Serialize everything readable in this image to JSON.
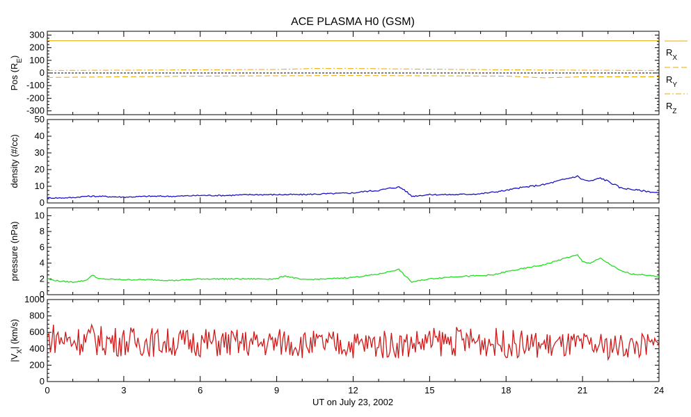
{
  "chart_data": {
    "title": "ACE PLASMA H0 (GSM)",
    "xlabel": "UT on July 23, 2002",
    "type": "line",
    "x_ticks": [
      "0",
      "3",
      "6",
      "9",
      "12",
      "15",
      "18",
      "21",
      "24"
    ],
    "xlim": [
      0,
      24
    ],
    "panels": [
      {
        "id": "pos",
        "ylabel_main": "Pos (R",
        "ylabel_sub": "E",
        "ylabel_tail": ")",
        "ylim": [
          -330,
          330
        ],
        "y_ticks": [
          "300",
          "200",
          "100",
          "0",
          "-100",
          "-200",
          "-300"
        ],
        "y_tick_values": [
          300,
          200,
          100,
          0,
          -100,
          -200,
          -300
        ],
        "legend": [
          {
            "main": "R",
            "sub": "X",
            "color": "#e8a800",
            "dash": "solid"
          },
          {
            "main": "R",
            "sub": "Y",
            "color": "#e8a800",
            "dash": "dashed"
          },
          {
            "main": "R",
            "sub": "Z",
            "color": "#e8a800",
            "dash": "dashdot"
          }
        ],
        "series": [
          {
            "style": "solid",
            "color": "#e8a800",
            "x": [
              0,
              24
            ],
            "y": [
              255,
              255
            ]
          },
          {
            "style": "dashed",
            "color": "#e8a800",
            "x": [
              0,
              3,
              6,
              9,
              12,
              15,
              18,
              19.5,
              21,
              24
            ],
            "y": [
              -35,
              -30,
              -25,
              -22,
              -20,
              -22,
              -25,
              -38,
              -30,
              -30
            ]
          },
          {
            "style": "dashdot",
            "color": "#e8a800",
            "x": [
              0,
              3,
              6,
              9,
              10.5,
              12,
              15,
              18,
              21,
              24
            ],
            "y": [
              20,
              22,
              25,
              28,
              35,
              35,
              30,
              25,
              22,
              20
            ]
          },
          {
            "style": "zero",
            "color": "#000000",
            "x": [
              0,
              24
            ],
            "y": [
              0,
              0
            ]
          }
        ]
      },
      {
        "id": "density",
        "ylabel_main": "density (#/cc)",
        "ylim": [
          0,
          50
        ],
        "y_ticks": [
          "50",
          "40",
          "30",
          "20",
          "10",
          "0"
        ],
        "y_tick_values": [
          50,
          40,
          30,
          20,
          10,
          0
        ],
        "series": [
          {
            "color": "#1a10c8",
            "x": [
              0,
              0.5,
              1,
              1.5,
              2,
              3,
              4,
              5,
              6,
              7,
              8,
              9,
              10,
              11,
              12,
              12.5,
              13,
              13.5,
              13.8,
              14,
              14.3,
              15,
              16,
              17,
              17.5,
              18,
              18.5,
              19,
              19.5,
              20,
              20.5,
              20.8,
              21,
              21.3,
              21.7,
              22,
              22.5,
              23,
              23.5,
              24
            ],
            "y": [
              3,
              3,
              3.2,
              4,
              4,
              3.5,
              4,
              4,
              4.5,
              4.5,
              5,
              5,
              5,
              5.5,
              6,
              7,
              7.5,
              9,
              9.5,
              8,
              4,
              5,
              5,
              5.5,
              6.5,
              7.5,
              9,
              10,
              11,
              13,
              15,
              16,
              14,
              13,
              15,
              13,
              9,
              8,
              7,
              6
            ]
          }
        ]
      },
      {
        "id": "pressure",
        "ylabel_main": "pressure (nPa)",
        "ylim": [
          0,
          11
        ],
        "y_ticks": [
          "10",
          "8",
          "6",
          "4",
          "2",
          "0"
        ],
        "y_tick_values": [
          10,
          8,
          6,
          4,
          2,
          0
        ],
        "series": [
          {
            "color": "#22dd22",
            "x": [
              0,
              0.5,
              1,
              1.5,
              1.8,
              2,
              3,
              4,
              5,
              6,
              7,
              8,
              9,
              9.3,
              10,
              11,
              12,
              12.5,
              13,
              13.5,
              13.8,
              14,
              14.3,
              15,
              16,
              17,
              17.5,
              18,
              18.5,
              19,
              19.5,
              20,
              20.5,
              20.8,
              21,
              21.3,
              21.7,
              22,
              22.5,
              23,
              23.5,
              24
            ],
            "y": [
              2,
              1.7,
              1.6,
              1.8,
              2.5,
              2,
              1.9,
              1.9,
              1.8,
              2,
              2,
              2,
              2,
              2.4,
              1.9,
              2,
              2.2,
              2.4,
              2.6,
              3,
              3.2,
              2.5,
              1.6,
              2,
              2.3,
              2.4,
              2.5,
              2.9,
              3.2,
              3.5,
              3.8,
              4.3,
              4.8,
              5,
              4.2,
              4,
              4.6,
              4,
              3,
              2.6,
              2.5,
              2.2
            ]
          }
        ]
      },
      {
        "id": "vx",
        "ylabel_main": "|V",
        "ylabel_sub": "X",
        "ylabel_tail": "| (km/s)",
        "ylim": [
          0,
          1000
        ],
        "y_ticks": [
          "1000",
          "800",
          "600",
          "400",
          "200",
          "0"
        ],
        "y_tick_values": [
          1000,
          800,
          600,
          400,
          200,
          0
        ],
        "series": [
          {
            "color": "#d01818",
            "x": [
              0,
              0.3,
              0.6,
              1,
              1.5,
              1.8,
              2,
              3,
              4,
              5,
              6,
              7,
              8,
              9,
              9.3,
              10,
              11,
              12,
              13,
              14,
              14.5,
              15,
              16,
              17,
              17.5,
              18,
              19,
              20,
              21,
              22,
              23,
              24
            ],
            "y": [
              520,
              540,
              510,
              500,
              510,
              530,
              500,
              490,
              485,
              475,
              480,
              470,
              465,
              470,
              490,
              455,
              455,
              450,
              455,
              450,
              470,
              480,
              490,
              490,
              480,
              460,
              450,
              440,
              435,
              425,
              440,
              430
            ]
          }
        ]
      }
    ]
  }
}
